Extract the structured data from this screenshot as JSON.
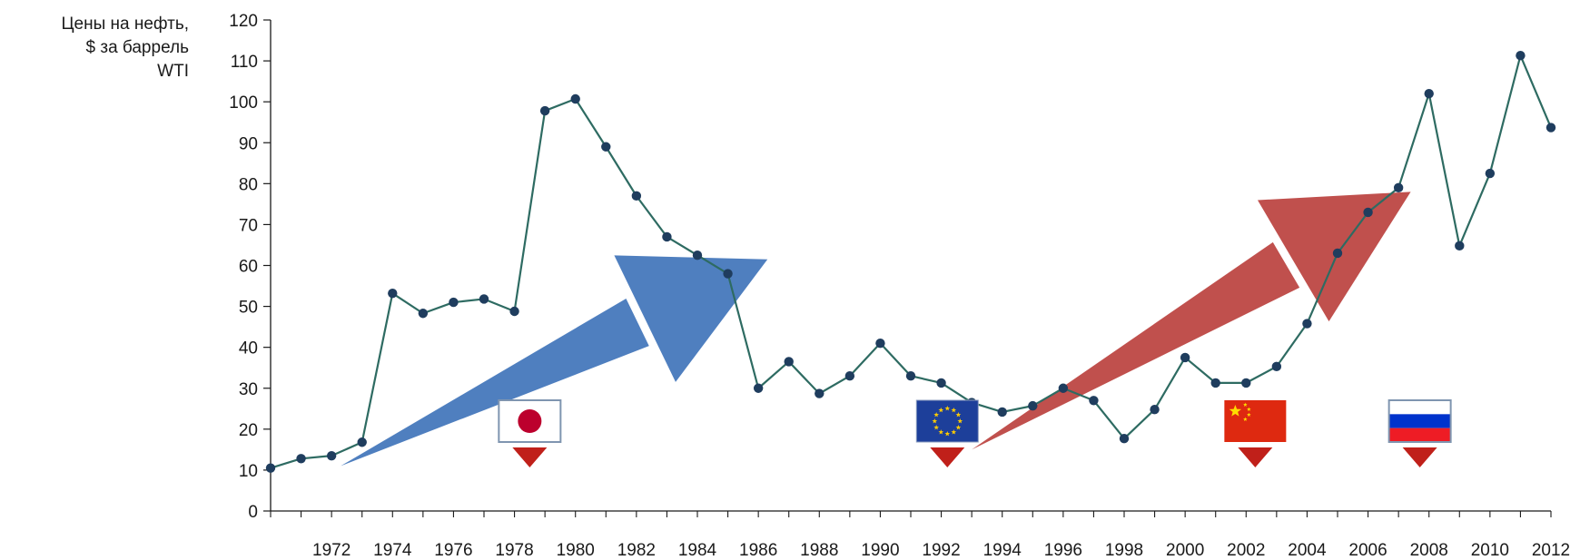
{
  "chart_data": {
    "type": "line",
    "title": "",
    "ylabel_lines": [
      "Цены на нефть,",
      "$ за баррель",
      "WTI"
    ],
    "xlabel": "",
    "ylim": [
      0,
      120
    ],
    "yticks": [
      0,
      10,
      20,
      30,
      40,
      50,
      60,
      70,
      80,
      90,
      100,
      110,
      120
    ],
    "xlim": [
      1970,
      2012
    ],
    "xticks": [
      1972,
      1974,
      1976,
      1978,
      1980,
      1982,
      1984,
      1986,
      1988,
      1990,
      1992,
      1994,
      1996,
      1998,
      2000,
      2002,
      2004,
      2006,
      2008,
      2010,
      2012
    ],
    "grid": false,
    "series": [
      {
        "color": "#2e6b62",
        "marker_color": "#1f3d5e",
        "x": [
          1970,
          1971,
          1972,
          1973,
          1974,
          1975,
          1976,
          1977,
          1978,
          1979,
          1980,
          1981,
          1982,
          1983,
          1984,
          1985,
          1986,
          1987,
          1988,
          1989,
          1990,
          1991,
          1992,
          1993,
          1994,
          1995,
          1996,
          1997,
          1998,
          1999,
          2000,
          2001,
          2002,
          2003,
          2004,
          2005,
          2006,
          2007,
          2008,
          2009,
          2010,
          2011,
          2012
        ],
        "y": [
          10.5,
          12.8,
          13.5,
          16.8,
          53.2,
          48.3,
          51,
          51.8,
          48.8,
          97.8,
          100.7,
          89,
          77,
          67,
          62.5,
          58,
          30,
          36.5,
          28.7,
          33,
          41,
          33,
          31.3,
          26.5,
          24.2,
          25.7,
          30,
          27,
          17.7,
          24.8,
          37.5,
          31.3,
          31.3,
          35.3,
          45.8,
          63,
          73,
          79,
          102,
          64.8,
          82.5,
          111.3,
          93.7
        ]
      }
    ],
    "annotations": [
      {
        "kind": "arrow",
        "color": "#4f7fbf",
        "tail_xy": [
          1972.3,
          11
        ],
        "tip_xy": [
          1986.3,
          61.5
        ],
        "label": ""
      },
      {
        "kind": "arrow",
        "color": "#c0504d",
        "tail_xy": [
          1993.0,
          15
        ],
        "tip_xy": [
          2007.4,
          78
        ],
        "label": ""
      }
    ],
    "flags": [
      {
        "country": "japan",
        "icon": "japan-flag-icon",
        "x": 1978.5
      },
      {
        "country": "european-union",
        "icon": "eu-flag-icon",
        "x": 1992.2
      },
      {
        "country": "china",
        "icon": "china-flag-icon",
        "x": 2002.3
      },
      {
        "country": "russia",
        "icon": "russia-flag-icon",
        "x": 2007.7
      }
    ]
  }
}
